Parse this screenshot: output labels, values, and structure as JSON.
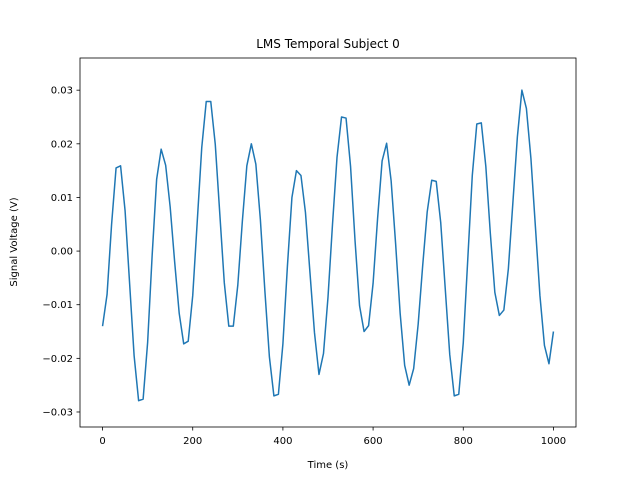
{
  "chart_data": {
    "type": "line",
    "title": "LMS Temporal Subject 0",
    "x_label": "Time (s)",
    "y_label": "Signal Voltage (V)",
    "x": [
      0,
      10,
      20,
      30,
      40,
      50,
      60,
      70,
      80,
      90,
      100,
      110,
      120,
      130,
      140,
      150,
      160,
      170,
      180,
      190,
      200,
      210,
      220,
      230,
      240,
      250,
      260,
      270,
      280,
      290,
      300,
      310,
      320,
      330,
      340,
      350,
      360,
      370,
      380,
      390,
      400,
      410,
      420,
      430,
      440,
      450,
      460,
      470,
      480,
      490,
      500,
      510,
      520,
      530,
      540,
      550,
      560,
      570,
      580,
      590,
      600,
      610,
      620,
      630,
      640,
      650,
      660,
      670,
      680,
      690,
      700,
      710,
      720,
      730,
      740,
      750,
      760,
      770,
      780,
      790,
      800,
      810,
      820,
      830,
      840,
      850,
      860,
      870,
      880,
      890,
      900,
      910,
      920,
      930,
      940,
      950,
      960,
      970,
      980,
      990,
      1000
    ],
    "series": [
      {
        "name": "Signal",
        "color": "#1f77b4",
        "values": [
          -0.014,
          -0.0081,
          0.0049,
          0.0155,
          0.0159,
          0.0075,
          -0.006,
          -0.0195,
          -0.0279,
          -0.0276,
          -0.017,
          -0.0008,
          0.0134,
          0.019,
          0.016,
          0.0082,
          -0.0021,
          -0.0116,
          -0.0173,
          -0.0168,
          -0.0083,
          0.0055,
          0.0193,
          0.0279,
          0.0279,
          0.0199,
          0.007,
          -0.0059,
          -0.014,
          -0.014,
          -0.0063,
          0.0055,
          0.0159,
          0.02,
          0.0162,
          0.0059,
          -0.0074,
          -0.0197,
          -0.027,
          -0.0267,
          -0.0173,
          -0.0028,
          0.01,
          0.015,
          0.0141,
          0.0072,
          -0.004,
          -0.0152,
          -0.023,
          -0.0191,
          -0.0086,
          0.005,
          0.0175,
          0.025,
          0.0248,
          0.0158,
          0.0019,
          -0.0102,
          -0.015,
          -0.0139,
          -0.006,
          0.0061,
          0.0168,
          0.0201,
          0.0131,
          0.0013,
          -0.0116,
          -0.0213,
          -0.025,
          -0.0219,
          -0.0136,
          -0.0027,
          0.0073,
          0.0132,
          0.013,
          0.0053,
          -0.007,
          -0.0193,
          -0.027,
          -0.0267,
          -0.0171,
          -0.0015,
          0.0141,
          0.0237,
          0.0239,
          0.0158,
          0.0033,
          -0.0077,
          -0.012,
          -0.011,
          -0.0033,
          0.009,
          0.0213,
          0.03,
          0.0266,
          0.0173,
          0.0045,
          -0.0083,
          -0.0176,
          -0.021,
          -0.015
        ]
      }
    ],
    "xlim": [
      -50,
      1050
    ],
    "ylim": [
      -0.0328,
      0.036
    ],
    "xticks": [
      0,
      200,
      400,
      600,
      800,
      1000
    ],
    "yticks": [
      {
        "value": -0.03,
        "label": "−0.03"
      },
      {
        "value": -0.02,
        "label": "−0.02"
      },
      {
        "value": -0.01,
        "label": "−0.01"
      },
      {
        "value": 0,
        "label": "0.00"
      },
      {
        "value": 0.01,
        "label": "0.01"
      },
      {
        "value": 0.02,
        "label": "0.02"
      },
      {
        "value": 0.03,
        "label": "0.03"
      }
    ],
    "grid": false
  }
}
